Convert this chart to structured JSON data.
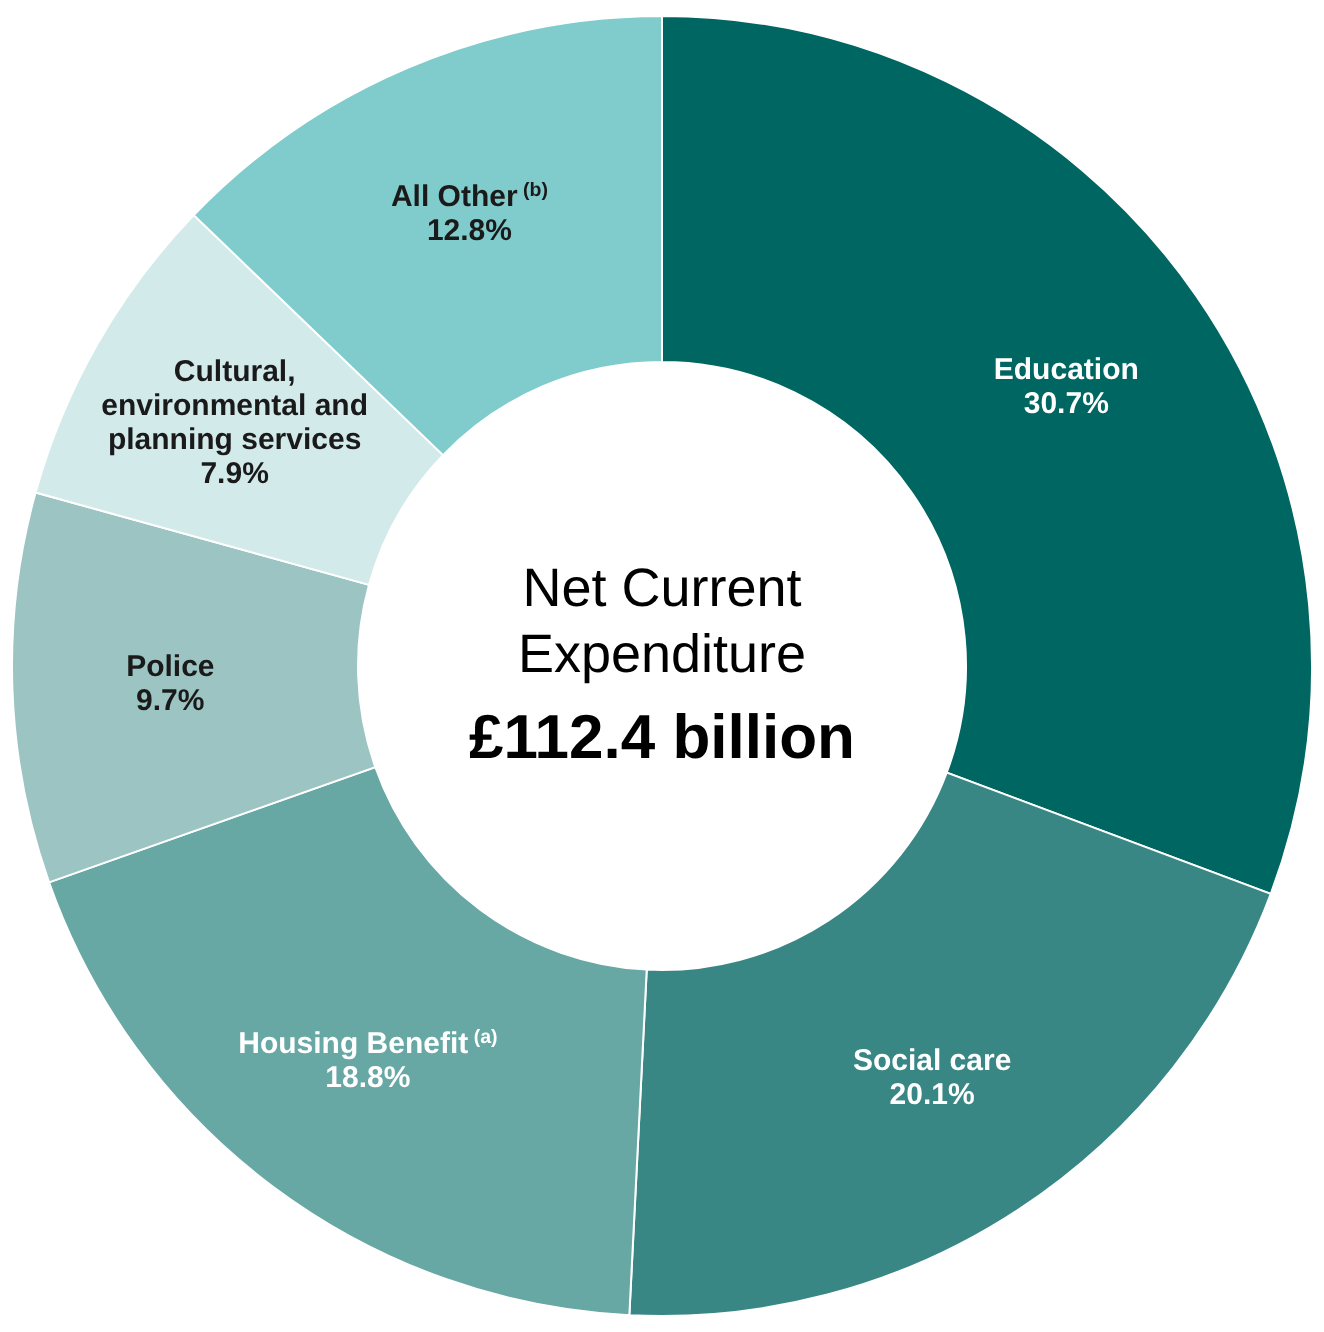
{
  "chart_data": {
    "type": "donut",
    "title": "Net Current Expenditure",
    "subtitle": "£112.4 billion",
    "categories": [
      "Education",
      "Social care",
      "Housing Benefit$^{(a)}$",
      "Police",
      "Cultural, environmental and planning services",
      "All Other$^{(b)}$"
    ],
    "values": [
      30.7,
      20.1,
      18.8,
      9.7,
      7.9,
      12.8
    ],
    "colors": [
      "#006661",
      "#388784",
      "#67a7a4",
      "#9cc4c3",
      "#d3eaeb",
      "#80cccc"
    ],
    "value_labels": [
      "30.7%",
      "20.1%",
      "18.8%",
      "9.7%",
      "7.9%",
      "12.8%"
    ]
  }
}
